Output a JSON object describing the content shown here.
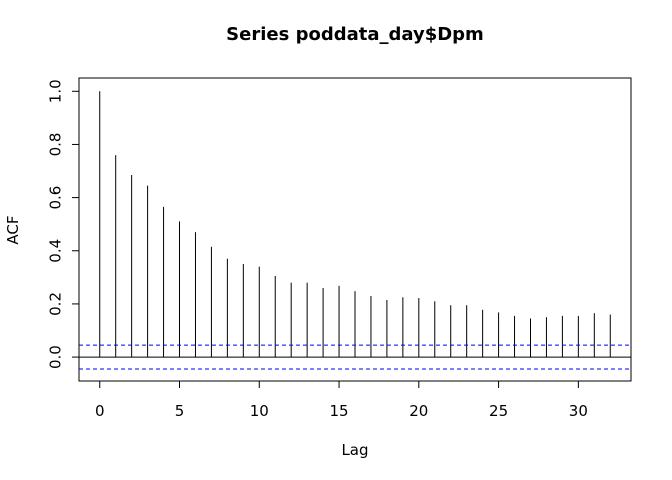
{
  "chart_data": {
    "type": "bar",
    "title": "Series  poddata_day$Dpm",
    "xlabel": "Lag",
    "ylabel": "ACF",
    "xlim": [
      -1.3,
      33.3
    ],
    "ylim": [
      -0.09,
      1.05
    ],
    "x_ticks": [
      0,
      5,
      10,
      15,
      20,
      25,
      30
    ],
    "x_tick_labels": [
      "0",
      "5",
      "10",
      "15",
      "20",
      "25",
      "30"
    ],
    "y_ticks": [
      0.0,
      0.2,
      0.4,
      0.6,
      0.8,
      1.0
    ],
    "y_tick_labels": [
      "0.0",
      "0.2",
      "0.4",
      "0.6",
      "0.8",
      "1.0"
    ],
    "lags": [
      0,
      1,
      2,
      3,
      4,
      5,
      6,
      7,
      8,
      9,
      10,
      11,
      12,
      13,
      14,
      15,
      16,
      17,
      18,
      19,
      20,
      21,
      22,
      23,
      24,
      25,
      26,
      27,
      28,
      29,
      30,
      31,
      32
    ],
    "acf": [
      1.0,
      0.76,
      0.685,
      0.645,
      0.565,
      0.51,
      0.47,
      0.415,
      0.37,
      0.35,
      0.34,
      0.305,
      0.28,
      0.28,
      0.26,
      0.268,
      0.248,
      0.23,
      0.215,
      0.225,
      0.222,
      0.21,
      0.195,
      0.195,
      0.178,
      0.168,
      0.155,
      0.145,
      0.15,
      0.155,
      0.155,
      0.165,
      0.16
    ],
    "confidence_band": 0.045,
    "colors": {
      "bars": "#000000",
      "zero_line": "#000000",
      "confidence_band": "#0000ff"
    },
    "grid": false
  }
}
